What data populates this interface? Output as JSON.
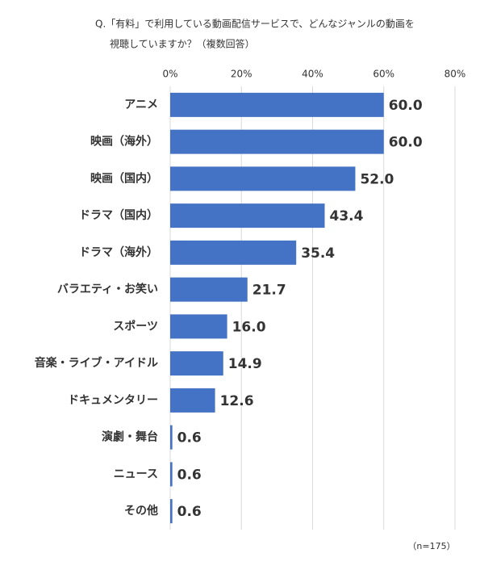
{
  "chart_data": {
    "type": "bar",
    "orientation": "horizontal",
    "title_lines": [
      "Q.「有料」で利用している動画配信サービスで、どんなジャンルの動画を",
      "視聴していますか？（複数回答）"
    ],
    "categories": [
      "アニメ",
      "映画（海外）",
      "映画（国内）",
      "ドラマ（国内）",
      "ドラマ（海外）",
      "バラエティ・お笑い",
      "スポーツ",
      "音楽・ライブ・アイドル",
      "ドキュメンタリー",
      "演劇・舞台",
      "ニュース",
      "その他"
    ],
    "values": [
      60,
      60,
      52,
      43.4,
      35.4,
      21.7,
      16,
      14.9,
      12.6,
      0.6,
      0.6,
      0.6
    ],
    "value_labels": [
      "60.0",
      "60.0",
      "52.0",
      "43.4",
      "35.4",
      "21.7",
      "16.0",
      "14.9",
      "12.6",
      "0.6",
      "0.6",
      "0.6"
    ],
    "color": "#4472c4",
    "xlim": [
      0,
      80
    ],
    "xticks": [
      {
        "value": 0,
        "label": "0%"
      },
      {
        "value": 20,
        "label": "20%"
      },
      {
        "value": 40,
        "label": "40%"
      },
      {
        "value": 60,
        "label": "60%"
      },
      {
        "value": 80,
        "label": "80%"
      }
    ],
    "grid": true,
    "note": "（n=175）"
  }
}
